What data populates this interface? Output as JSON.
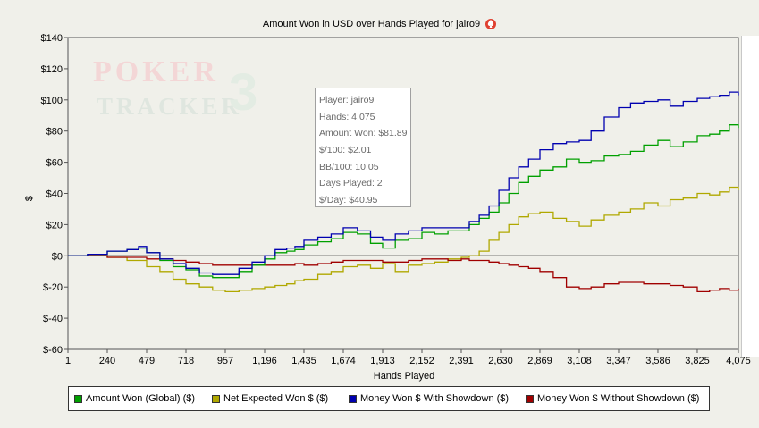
{
  "chart_data": {
    "type": "line",
    "title": "Amount Won in USD over Hands Played for jairo9",
    "xlabel": "Hands Played",
    "ylabel": "$",
    "x_ticks": [
      "1",
      "240",
      "479",
      "718",
      "957",
      "1,196",
      "1,435",
      "1,674",
      "1,913",
      "2,152",
      "2,391",
      "2,630",
      "2,869",
      "3,108",
      "3,347",
      "3,586",
      "3,825",
      "4,075"
    ],
    "y_ticks": [
      "$140",
      "$120",
      "$100",
      "$80",
      "$60",
      "$40",
      "$20",
      "$0",
      "$-20",
      "$-40",
      "$-60"
    ],
    "xlim": [
      1,
      4075
    ],
    "ylim": [
      -60,
      140
    ],
    "grid": false,
    "legend_position": "bottom",
    "series": [
      {
        "name": "Amount Won (Global) ($)",
        "color": "#00a000",
        "x": [
          1,
          120,
          240,
          360,
          430,
          479,
          560,
          640,
          718,
          800,
          880,
          957,
          1040,
          1120,
          1196,
          1260,
          1330,
          1380,
          1435,
          1520,
          1600,
          1674,
          1760,
          1840,
          1913,
          1990,
          2070,
          2152,
          2230,
          2310,
          2391,
          2440,
          2500,
          2560,
          2620,
          2680,
          2740,
          2800,
          2869,
          2950,
          3030,
          3108,
          3180,
          3260,
          3347,
          3420,
          3500,
          3586,
          3660,
          3740,
          3825,
          3900,
          3960,
          4020,
          4075
        ],
        "y": [
          0,
          1,
          3,
          4,
          5,
          2,
          -3,
          -7,
          -9,
          -13,
          -14,
          -14,
          -10,
          -6,
          -2,
          2,
          3,
          4,
          7,
          9,
          11,
          15,
          14,
          8,
          5,
          10,
          11,
          15,
          14,
          16,
          16,
          20,
          24,
          28,
          34,
          40,
          47,
          51,
          55,
          57,
          62,
          60,
          61,
          64,
          65,
          67,
          71,
          74,
          70,
          73,
          77,
          78,
          80,
          84,
          82
        ]
      },
      {
        "name": "Net Expected Won $ ($)",
        "color": "#b0a800",
        "x": [
          1,
          120,
          240,
          360,
          479,
          560,
          640,
          718,
          800,
          880,
          957,
          1040,
          1120,
          1196,
          1260,
          1330,
          1380,
          1435,
          1520,
          1600,
          1674,
          1760,
          1840,
          1913,
          1990,
          2070,
          2152,
          2230,
          2310,
          2391,
          2440,
          2500,
          2560,
          2620,
          2680,
          2740,
          2800,
          2869,
          2950,
          3030,
          3108,
          3180,
          3260,
          3347,
          3420,
          3500,
          3586,
          3660,
          3740,
          3825,
          3900,
          3960,
          4020,
          4075
        ],
        "y": [
          0,
          0,
          -1,
          -3,
          -7,
          -10,
          -15,
          -18,
          -20,
          -22,
          -23,
          -22,
          -21,
          -20,
          -19,
          -18,
          -16,
          -15,
          -12,
          -10,
          -7,
          -6,
          -8,
          -5,
          -10,
          -6,
          -5,
          -4,
          -2,
          -1,
          0,
          3,
          10,
          15,
          20,
          25,
          27,
          28,
          24,
          22,
          19,
          23,
          26,
          28,
          30,
          34,
          32,
          36,
          37,
          40,
          39,
          41,
          44,
          42
        ]
      },
      {
        "name": "Money Won $ With Showdown ($)",
        "color": "#0000b0",
        "x": [
          1,
          120,
          240,
          360,
          430,
          479,
          560,
          640,
          718,
          800,
          880,
          957,
          1040,
          1120,
          1196,
          1260,
          1330,
          1380,
          1435,
          1520,
          1600,
          1674,
          1760,
          1840,
          1913,
          1990,
          2070,
          2152,
          2230,
          2310,
          2391,
          2440,
          2500,
          2560,
          2620,
          2680,
          2740,
          2800,
          2869,
          2950,
          3030,
          3108,
          3180,
          3260,
          3347,
          3420,
          3500,
          3586,
          3660,
          3740,
          3825,
          3900,
          3960,
          4020,
          4075
        ],
        "y": [
          0,
          1,
          3,
          4,
          6,
          2,
          -2,
          -5,
          -8,
          -11,
          -12,
          -12,
          -8,
          -4,
          0,
          4,
          5,
          6,
          10,
          12,
          14,
          18,
          16,
          12,
          10,
          14,
          16,
          18,
          18,
          18,
          18,
          22,
          26,
          32,
          42,
          50,
          57,
          62,
          68,
          72,
          73,
          74,
          80,
          89,
          95,
          98,
          99,
          100,
          96,
          99,
          101,
          102,
          103,
          105,
          103
        ]
      },
      {
        "name": "Money Won $ Without Showdown ($)",
        "color": "#a00000",
        "x": [
          1,
          120,
          240,
          360,
          479,
          560,
          640,
          718,
          800,
          880,
          957,
          1040,
          1120,
          1196,
          1260,
          1330,
          1380,
          1435,
          1520,
          1600,
          1674,
          1760,
          1840,
          1913,
          1990,
          2070,
          2152,
          2230,
          2310,
          2391,
          2440,
          2500,
          2560,
          2620,
          2680,
          2740,
          2800,
          2869,
          2950,
          3030,
          3108,
          3180,
          3260,
          3347,
          3420,
          3500,
          3586,
          3660,
          3740,
          3825,
          3900,
          3960,
          4020,
          4075
        ],
        "y": [
          0,
          0,
          -1,
          -1,
          -2,
          -2,
          -3,
          -4,
          -5,
          -6,
          -6,
          -6,
          -6,
          -6,
          -6,
          -6,
          -5,
          -6,
          -5,
          -4,
          -3,
          -3,
          -3,
          -4,
          -4,
          -3,
          -2,
          -2,
          -3,
          -2,
          -3,
          -3,
          -4,
          -5,
          -6,
          -7,
          -8,
          -10,
          -14,
          -20,
          -21,
          -20,
          -18,
          -17,
          -17,
          -18,
          -18,
          -19,
          -20,
          -23,
          -22,
          -21,
          -22,
          -21
        ]
      }
    ]
  },
  "tooltip": {
    "player": "Player: jairo9",
    "hands": "Hands: 4,075",
    "amount_won": "Amount Won: $81.89",
    "per100": "$/100: $2.01",
    "bb100": "BB/100: 10.05",
    "days": "Days Played: 2",
    "per_day": "$/Day: $40.95"
  },
  "watermark": {
    "top": "POKER",
    "bottom": "TRACKER",
    "version": "3"
  },
  "icons": {
    "title_icon": "spade-icon"
  }
}
